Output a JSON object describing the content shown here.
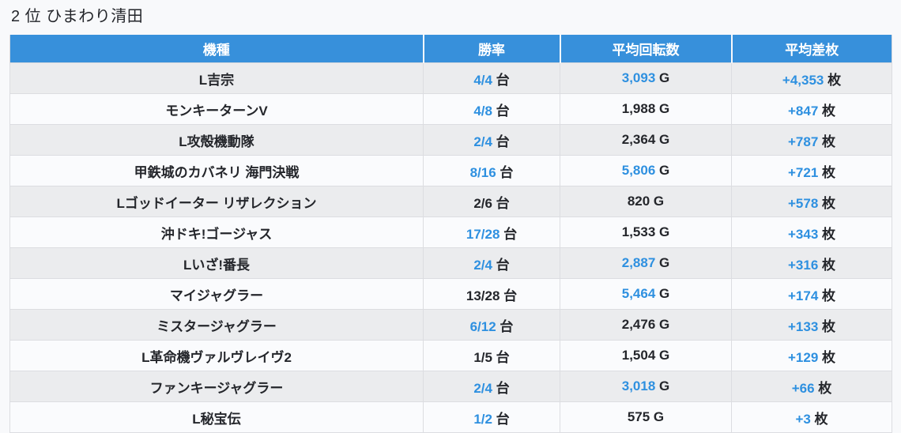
{
  "title": "2 位 ひまわり清田",
  "colors": {
    "header_bg": "#3790db",
    "header_text": "#ffffff",
    "value_highlight_blue": "#2e90e0",
    "text_dark": "#24262b",
    "row_alt_bg": "#ebecee",
    "row_bg": "#fafbfd",
    "page_bg": "#f8f9fb"
  },
  "table": {
    "headers": [
      "機種",
      "勝率",
      "平均回転数",
      "平均差枚"
    ],
    "units": {
      "win_rate": "台",
      "spins": "G",
      "diff": "枚"
    },
    "rows": [
      {
        "machine": "L吉宗",
        "win_rate": "4/4",
        "win_rate_blue": true,
        "spins": "3,093",
        "spins_blue": true,
        "diff": "+4,353",
        "diff_blue": true
      },
      {
        "machine": "モンキーターンV",
        "win_rate": "4/8",
        "win_rate_blue": true,
        "spins": "1,988",
        "spins_blue": false,
        "diff": "+847",
        "diff_blue": true
      },
      {
        "machine": "L攻殻機動隊",
        "win_rate": "2/4",
        "win_rate_blue": true,
        "spins": "2,364",
        "spins_blue": false,
        "diff": "+787",
        "diff_blue": true
      },
      {
        "machine": "甲鉄城のカバネリ 海門決戦",
        "win_rate": "8/16",
        "win_rate_blue": true,
        "spins": "5,806",
        "spins_blue": true,
        "diff": "+721",
        "diff_blue": true
      },
      {
        "machine": "Lゴッドイーター リザレクション",
        "win_rate": "2/6",
        "win_rate_blue": false,
        "spins": "820",
        "spins_blue": false,
        "diff": "+578",
        "diff_blue": true
      },
      {
        "machine": "沖ドキ!ゴージャス",
        "win_rate": "17/28",
        "win_rate_blue": true,
        "spins": "1,533",
        "spins_blue": false,
        "diff": "+343",
        "diff_blue": true
      },
      {
        "machine": "Lいざ!番長",
        "win_rate": "2/4",
        "win_rate_blue": true,
        "spins": "2,887",
        "spins_blue": true,
        "diff": "+316",
        "diff_blue": true
      },
      {
        "machine": "マイジャグラー",
        "win_rate": "13/28",
        "win_rate_blue": false,
        "spins": "5,464",
        "spins_blue": true,
        "diff": "+174",
        "diff_blue": true
      },
      {
        "machine": "ミスタージャグラー",
        "win_rate": "6/12",
        "win_rate_blue": true,
        "spins": "2,476",
        "spins_blue": false,
        "diff": "+133",
        "diff_blue": true
      },
      {
        "machine": "L革命機ヴァルヴレイヴ2",
        "win_rate": "1/5",
        "win_rate_blue": false,
        "spins": "1,504",
        "spins_blue": false,
        "diff": "+129",
        "diff_blue": true
      },
      {
        "machine": "ファンキージャグラー",
        "win_rate": "2/4",
        "win_rate_blue": true,
        "spins": "3,018",
        "spins_blue": true,
        "diff": "+66",
        "diff_blue": true
      },
      {
        "machine": "L秘宝伝",
        "win_rate": "1/2",
        "win_rate_blue": true,
        "spins": "575",
        "spins_blue": false,
        "diff": "+3",
        "diff_blue": true
      }
    ]
  },
  "chart_data": {
    "type": "table",
    "title": "2 位 ひまわり清田",
    "columns": [
      "機種",
      "勝率",
      "平均回転数",
      "平均差枚"
    ],
    "rows": [
      [
        "L吉宗",
        "4/4 台",
        "3,093 G",
        "+4,353 枚"
      ],
      [
        "モンキーターンV",
        "4/8 台",
        "1,988 G",
        "+847 枚"
      ],
      [
        "L攻殻機動隊",
        "2/4 台",
        "2,364 G",
        "+787 枚"
      ],
      [
        "甲鉄城のカバネリ 海門決戦",
        "8/16 台",
        "5,806 G",
        "+721 枚"
      ],
      [
        "Lゴッドイーター リザレクション",
        "2/6 台",
        "820 G",
        "+578 枚"
      ],
      [
        "沖ドキ!ゴージャス",
        "17/28 台",
        "1,533 G",
        "+343 枚"
      ],
      [
        "Lいざ!番長",
        "2/4 台",
        "2,887 G",
        "+316 枚"
      ],
      [
        "マイジャグラー",
        "13/28 台",
        "5,464 G",
        "+174 枚"
      ],
      [
        "ミスタージャグラー",
        "6/12 台",
        "2,476 G",
        "+133 枚"
      ],
      [
        "L革命機ヴァルヴレイヴ2",
        "1/5 台",
        "1,504 G",
        "+129 枚"
      ],
      [
        "ファンキージャグラー",
        "2/4 台",
        "3,018 G",
        "+66 枚"
      ],
      [
        "L秘宝伝",
        "1/2 台",
        "575 G",
        "+3 枚"
      ]
    ]
  }
}
